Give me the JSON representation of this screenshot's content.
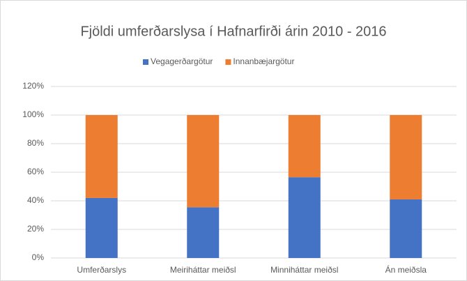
{
  "chart_data": {
    "type": "stacked_bar",
    "title": "Fjöldi umferðarslysa í Hafnarfirði árin 2010 - 2016",
    "categories": [
      "Umferðarslys",
      "Meiriháttar meiðsl",
      "Minniháttar meiðsl",
      "Án meiðsla"
    ],
    "series": [
      {
        "name": "Vegagerðargötur",
        "color": "#4472c4",
        "values": [
          42,
          35.5,
          56.5,
          41
        ]
      },
      {
        "name": "Innanbæjargötur",
        "color": "#ed7d31",
        "values": [
          58,
          64.5,
          43.5,
          59
        ]
      }
    ],
    "ylim": [
      0,
      120
    ],
    "yticks": [
      {
        "value": 0,
        "label": "0%"
      },
      {
        "value": 20,
        "label": "20%"
      },
      {
        "value": 40,
        "label": "40%"
      },
      {
        "value": 60,
        "label": "60%"
      },
      {
        "value": 80,
        "label": "80%"
      },
      {
        "value": 100,
        "label": "100%"
      },
      {
        "value": 120,
        "label": "120%"
      }
    ],
    "grid": true,
    "legend": "top"
  }
}
